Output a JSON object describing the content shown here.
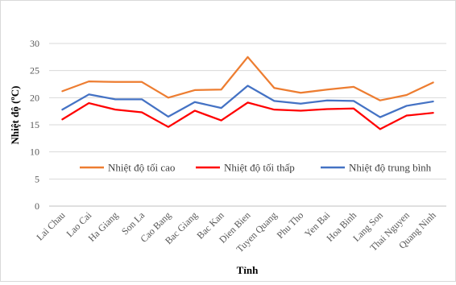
{
  "chart_data": {
    "type": "line",
    "xlabel": "Tỉnh",
    "ylabel": "Nhiệt độ (ºC)",
    "ylim": [
      0,
      30
    ],
    "yticks": [
      0,
      5,
      10,
      15,
      20,
      25,
      30
    ],
    "grid": "horizontal",
    "legend_position": "inside-bottom",
    "categories": [
      "Lai Chau",
      "Lao Cai",
      "Ha Giang",
      "Son La",
      "Cao Bang",
      "Bac Giang",
      "Bac Kan",
      "Dien Bien",
      "Tuyen Quang",
      "Phu Tho",
      "Yen Bai",
      "Hoa Binh",
      "Lang Son",
      "Thai Nguyen",
      "Quang Ninh"
    ],
    "series": [
      {
        "name": "Nhiệt độ tối cao",
        "color": "#ED7D31",
        "values": [
          21.2,
          23.0,
          22.9,
          22.9,
          20.0,
          21.4,
          21.5,
          27.5,
          21.8,
          20.9,
          21.5,
          22.0,
          19.5,
          20.5,
          22.8
        ]
      },
      {
        "name": "Nhiệt độ tối thấp",
        "color": "#FF0000",
        "values": [
          16.0,
          19.0,
          17.8,
          17.3,
          14.6,
          17.6,
          15.8,
          19.1,
          17.8,
          17.6,
          17.9,
          18.0,
          14.2,
          16.7,
          17.2
        ]
      },
      {
        "name": "Nhiệt độ trung bình",
        "color": "#4472C4",
        "values": [
          17.8,
          20.6,
          19.7,
          19.7,
          16.5,
          19.2,
          18.1,
          22.2,
          19.4,
          18.9,
          19.5,
          19.4,
          16.4,
          18.5,
          19.3
        ]
      }
    ]
  }
}
